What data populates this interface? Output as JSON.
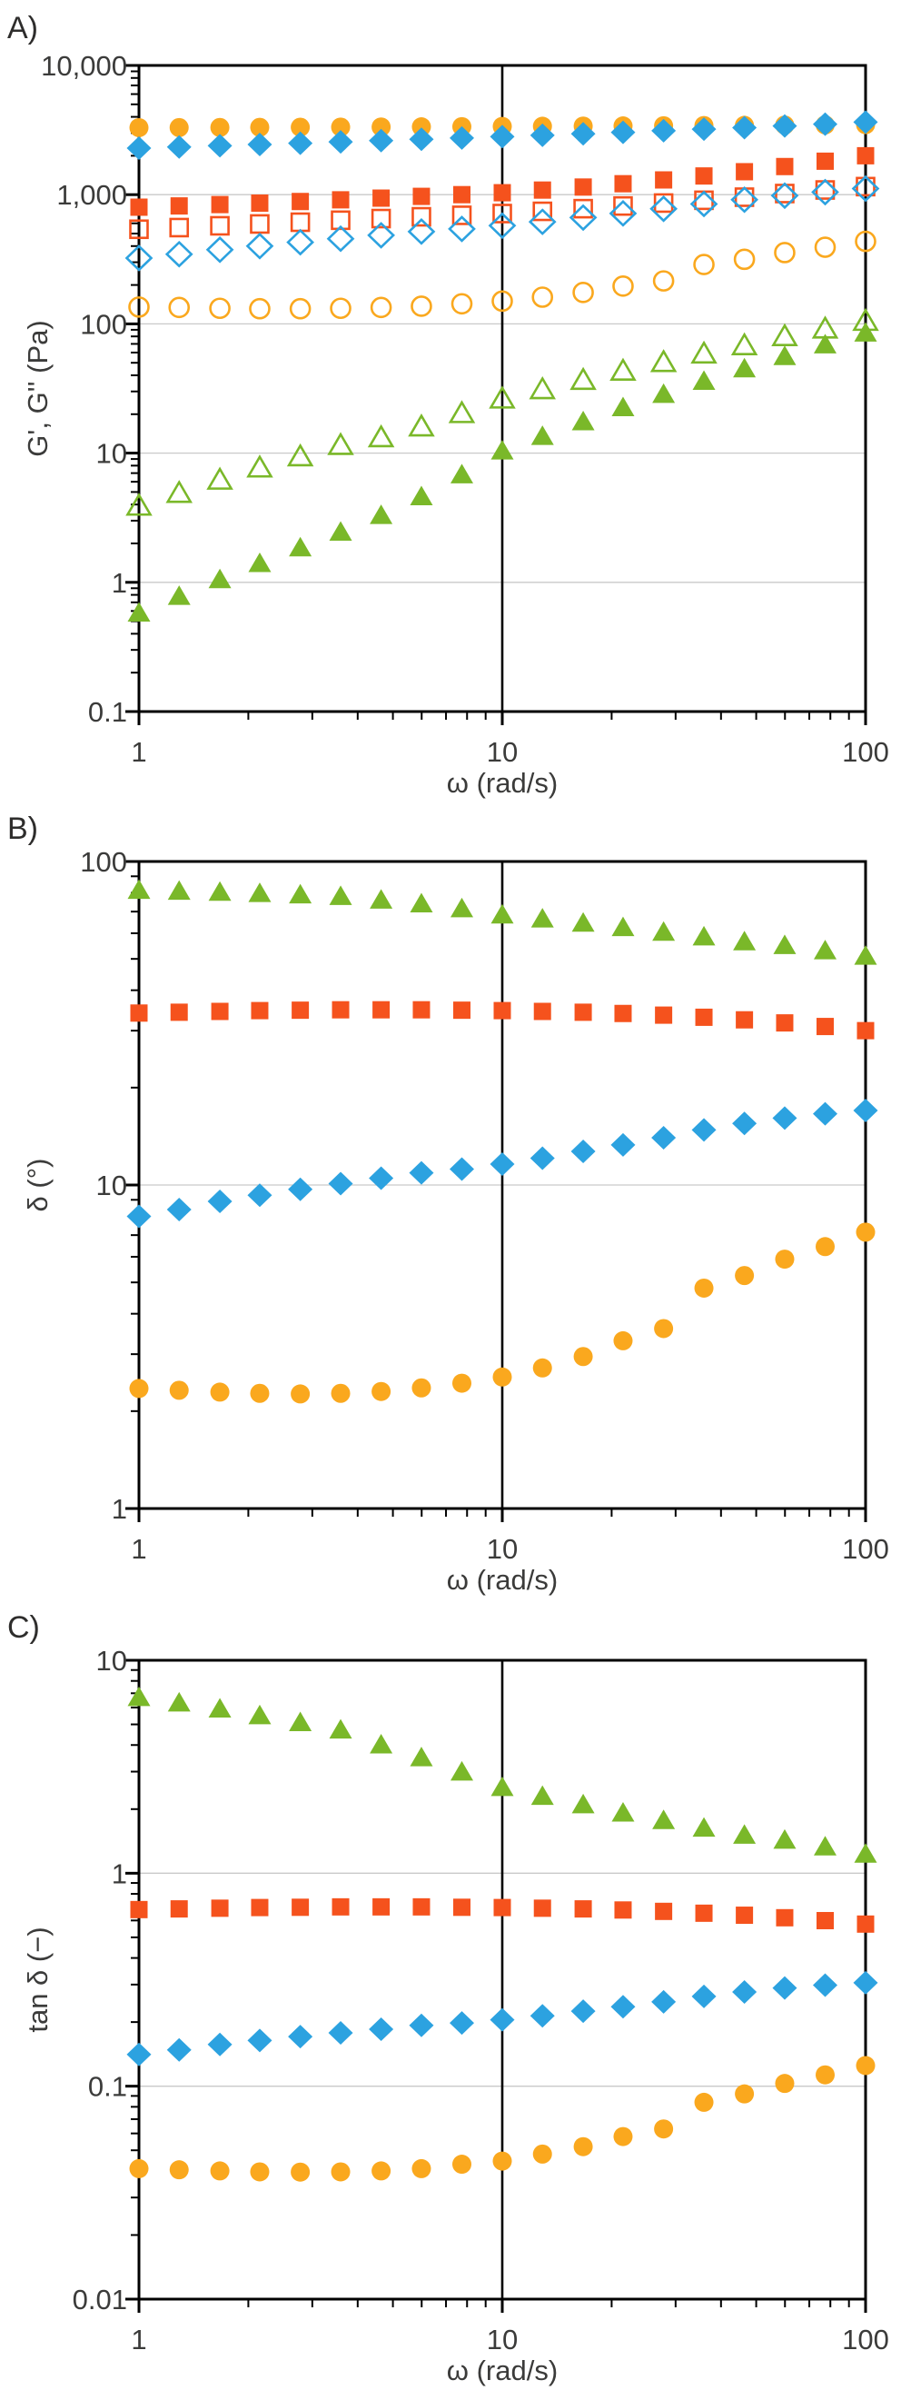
{
  "figure_background": "#ffffff",
  "colors": {
    "orange": "#FAA81E",
    "blue": "#2CA2E0",
    "red": "#F5521D",
    "green": "#7AB829",
    "axis": "#000000",
    "grid": "#c9c9c9",
    "text": "#3b3b3a"
  },
  "omega": [
    1,
    1.29,
    1.67,
    2.15,
    2.78,
    3.59,
    4.64,
    5.99,
    7.74,
    10,
    12.9,
    16.7,
    21.5,
    27.8,
    35.9,
    46.4,
    59.9,
    77.4,
    100
  ],
  "chart_data": [
    {
      "panel_label": "A)",
      "type": "scatter",
      "xscale": "log",
      "yscale": "log",
      "xlabel": "ω (rad/s)",
      "ylabel": "G', G'' (Pa)",
      "xlim": [
        1,
        100
      ],
      "ylim": [
        0.1,
        10000
      ],
      "x_ticks": [
        {
          "value": 1,
          "label": "1"
        },
        {
          "value": 10,
          "label": "10"
        },
        {
          "value": 100,
          "label": "100"
        }
      ],
      "y_ticks": [
        {
          "value": 10000,
          "label": "10,000"
        },
        {
          "value": 1000,
          "label": "1,000"
        },
        {
          "value": 100,
          "label": "100"
        },
        {
          "value": 10,
          "label": "10"
        },
        {
          "value": 1,
          "label": "1"
        },
        {
          "value": 0.1,
          "label": "0.1"
        }
      ],
      "vline_x": 10,
      "grid": "horizontal-decades",
      "legend": "none",
      "series": [
        {
          "name": "G' storage modulus - orange filled circles",
          "marker": "circle",
          "variant": "filled",
          "color": "orange",
          "values": [
            3300,
            3305,
            3312,
            3318,
            3325,
            3333,
            3340,
            3350,
            3360,
            3375,
            3385,
            3395,
            3405,
            3415,
            3430,
            3440,
            3455,
            3465,
            3480
          ]
        },
        {
          "name": "G' storage modulus - blue filled diamonds",
          "marker": "diamond",
          "variant": "filled",
          "color": "blue",
          "values": [
            2290,
            2340,
            2390,
            2445,
            2500,
            2560,
            2620,
            2685,
            2745,
            2810,
            2880,
            2955,
            3035,
            3120,
            3210,
            3300,
            3400,
            3510,
            3640
          ]
        },
        {
          "name": "G' storage modulus - red filled squares",
          "marker": "square",
          "variant": "filled",
          "color": "red",
          "values": [
            800,
            818,
            838,
            860,
            885,
            912,
            940,
            970,
            1000,
            1035,
            1085,
            1145,
            1215,
            1300,
            1395,
            1505,
            1650,
            1815,
            2000
          ]
        },
        {
          "name": "G'' loss modulus - red open squares",
          "marker": "square",
          "variant": "open",
          "color": "red",
          "values": [
            540,
            556,
            574,
            593,
            612,
            634,
            653,
            674,
            692,
            714,
            743,
            779,
            817,
            861,
            905,
            956,
            1020,
            1087,
            1154
          ]
        },
        {
          "name": "G'' loss modulus - blue open diamonds",
          "marker": "diamond",
          "variant": "open",
          "color": "blue",
          "values": [
            323,
            346,
            375,
            400,
            428,
            456,
            485,
            518,
            543,
            576,
            616,
            665,
            716,
            777,
            847,
            914,
            983,
            1046,
            1114
          ]
        },
        {
          "name": "G'' loss modulus - orange open circles",
          "marker": "circle",
          "variant": "open",
          "color": "orange",
          "values": [
            135,
            134,
            132,
            131,
            131,
            132,
            134,
            137,
            143,
            150,
            161,
            175,
            196,
            215,
            288,
            316,
            356,
            392,
            435
          ]
        },
        {
          "name": "G'' loss modulus - green open triangles",
          "marker": "triangle",
          "variant": "open",
          "color": "green",
          "values": [
            3.9,
            4.9,
            6.2,
            7.7,
            9.4,
            11.5,
            13.2,
            16.0,
            20.3,
            26.3,
            31.1,
            36.7,
            43.2,
            50.4,
            58.7,
            68.0,
            80.0,
            91.6,
            105
          ]
        },
        {
          "name": "G' storage modulus - green filled triangles",
          "marker": "triangle",
          "variant": "filled",
          "color": "green",
          "values": [
            0.58,
            0.78,
            1.05,
            1.4,
            1.85,
            2.45,
            3.3,
            4.6,
            6.8,
            10.4,
            13.5,
            17.5,
            22.5,
            28.5,
            36,
            45,
            56,
            69,
            85
          ]
        }
      ]
    },
    {
      "panel_label": "B)",
      "type": "scatter",
      "xscale": "log",
      "yscale": "log",
      "xlabel": "ω (rad/s)",
      "ylabel": "δ (°)",
      "xlim": [
        1,
        100
      ],
      "ylim": [
        1,
        100
      ],
      "x_ticks": [
        {
          "value": 1,
          "label": "1"
        },
        {
          "value": 10,
          "label": "10"
        },
        {
          "value": 100,
          "label": "100"
        }
      ],
      "y_ticks": [
        {
          "value": 100,
          "label": "100"
        },
        {
          "value": 10,
          "label": "10"
        },
        {
          "value": 1,
          "label": "1"
        }
      ],
      "vline_x": 10,
      "grid": "horizontal-decades",
      "legend": "none",
      "series": [
        {
          "name": "phase angle - green filled triangles",
          "marker": "triangle",
          "variant": "filled",
          "color": "green",
          "values": [
            81.5,
            81.0,
            80.4,
            79.7,
            78.9,
            78.0,
            76.0,
            74.0,
            71.5,
            68.4,
            66.5,
            64.5,
            62.5,
            60.5,
            58.5,
            56.5,
            55.0,
            53.0,
            51.0
          ]
        },
        {
          "name": "phase angle - red filled squares",
          "marker": "square",
          "variant": "filled",
          "color": "red",
          "values": [
            34.0,
            34.2,
            34.4,
            34.6,
            34.7,
            34.8,
            34.8,
            34.8,
            34.7,
            34.6,
            34.4,
            34.2,
            33.9,
            33.5,
            33.0,
            32.4,
            31.7,
            30.9,
            30.0
          ]
        },
        {
          "name": "phase angle - blue filled diamonds",
          "marker": "diamond",
          "variant": "filled",
          "color": "blue",
          "values": [
            8.0,
            8.4,
            8.9,
            9.3,
            9.7,
            10.1,
            10.5,
            10.9,
            11.2,
            11.6,
            12.1,
            12.7,
            13.3,
            14.0,
            14.8,
            15.5,
            16.1,
            16.6,
            17.0
          ]
        },
        {
          "name": "phase angle - orange filled circles",
          "marker": "circle",
          "variant": "filled",
          "color": "orange",
          "values": [
            2.35,
            2.32,
            2.29,
            2.27,
            2.26,
            2.27,
            2.3,
            2.36,
            2.44,
            2.55,
            2.72,
            2.95,
            3.3,
            3.6,
            4.8,
            5.25,
            5.9,
            6.45,
            7.15
          ]
        }
      ]
    },
    {
      "panel_label": "C)",
      "type": "scatter",
      "xscale": "log",
      "yscale": "log",
      "xlabel": "ω (rad/s)",
      "ylabel": "tan δ (−)",
      "xlim": [
        1,
        100
      ],
      "ylim": [
        0.01,
        10
      ],
      "x_ticks": [
        {
          "value": 1,
          "label": "1"
        },
        {
          "value": 10,
          "label": "10"
        },
        {
          "value": 100,
          "label": "100"
        }
      ],
      "y_ticks": [
        {
          "value": 10,
          "label": "10"
        },
        {
          "value": 1,
          "label": "1"
        },
        {
          "value": 0.1,
          "label": "0.1"
        },
        {
          "value": 0.01,
          "label": "0.01"
        }
      ],
      "vline_x": 10,
      "grid": "horizontal-decades",
      "legend": "none",
      "series": [
        {
          "name": "loss tangent - green filled triangles",
          "marker": "triangle",
          "variant": "filled",
          "color": "green",
          "values": [
            6.69,
            6.31,
            5.91,
            5.5,
            5.1,
            4.71,
            4.01,
            3.49,
            2.99,
            2.53,
            2.3,
            2.1,
            1.92,
            1.77,
            1.63,
            1.51,
            1.43,
            1.33,
            1.23
          ]
        },
        {
          "name": "loss tangent - red filled squares",
          "marker": "square",
          "variant": "filled",
          "color": "red",
          "values": [
            0.675,
            0.68,
            0.685,
            0.69,
            0.692,
            0.695,
            0.695,
            0.695,
            0.692,
            0.69,
            0.685,
            0.68,
            0.672,
            0.662,
            0.649,
            0.635,
            0.618,
            0.599,
            0.577
          ]
        },
        {
          "name": "loss tangent - blue filled diamonds",
          "marker": "diamond",
          "variant": "filled",
          "color": "blue",
          "values": [
            0.141,
            0.148,
            0.157,
            0.164,
            0.171,
            0.178,
            0.185,
            0.193,
            0.198,
            0.205,
            0.214,
            0.225,
            0.236,
            0.249,
            0.264,
            0.277,
            0.289,
            0.298,
            0.306
          ]
        },
        {
          "name": "loss tangent - orange filled circles",
          "marker": "circle",
          "variant": "filled",
          "color": "orange",
          "values": [
            0.041,
            0.0405,
            0.04,
            0.0396,
            0.0395,
            0.0396,
            0.04,
            0.041,
            0.043,
            0.0445,
            0.048,
            0.052,
            0.058,
            0.063,
            0.084,
            0.092,
            0.103,
            0.113,
            0.125
          ]
        }
      ]
    }
  ]
}
